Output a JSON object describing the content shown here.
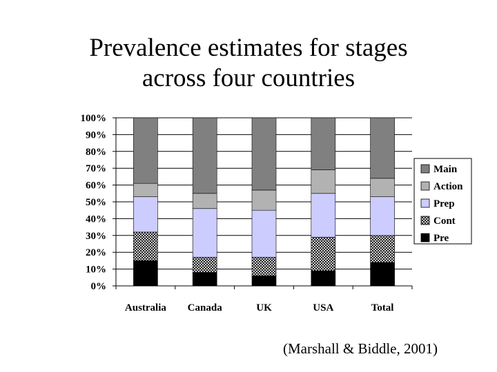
{
  "slide": {
    "title_line1": "Prevalence estimates for stages",
    "title_line2": "across four countries",
    "citation": "(Marshall & Biddle, 2001)"
  },
  "chart_data": {
    "type": "bar",
    "stacked": true,
    "percent_scale": true,
    "categories": [
      "Australia",
      "Canada",
      "UK",
      "USA",
      "Total"
    ],
    "series": [
      {
        "name": "Pre",
        "color": "#000000",
        "pattern": "solid",
        "values": [
          15,
          8,
          6,
          9,
          14
        ]
      },
      {
        "name": "Cont",
        "color": "#555555",
        "pattern": "crosshatch",
        "values": [
          17,
          9,
          11,
          20,
          16
        ]
      },
      {
        "name": "Prep",
        "color": "#ccccff",
        "pattern": "solid",
        "values": [
          21,
          29,
          28,
          26,
          23
        ]
      },
      {
        "name": "Action",
        "color": "#b2b2b2",
        "pattern": "solid",
        "values": [
          8,
          9,
          12,
          14,
          11
        ]
      },
      {
        "name": "Main",
        "color": "#808080",
        "pattern": "solid",
        "values": [
          39,
          45,
          43,
          31,
          36
        ]
      }
    ],
    "yticks": [
      "0%",
      "10%",
      "20%",
      "30%",
      "40%",
      "50%",
      "60%",
      "70%",
      "80%",
      "90%",
      "100%"
    ],
    "ylim": [
      0,
      100
    ],
    "legend_order": [
      "Main",
      "Action",
      "Prep",
      "Cont",
      "Pre"
    ],
    "legend_position": "right",
    "grid": "horizontal"
  }
}
